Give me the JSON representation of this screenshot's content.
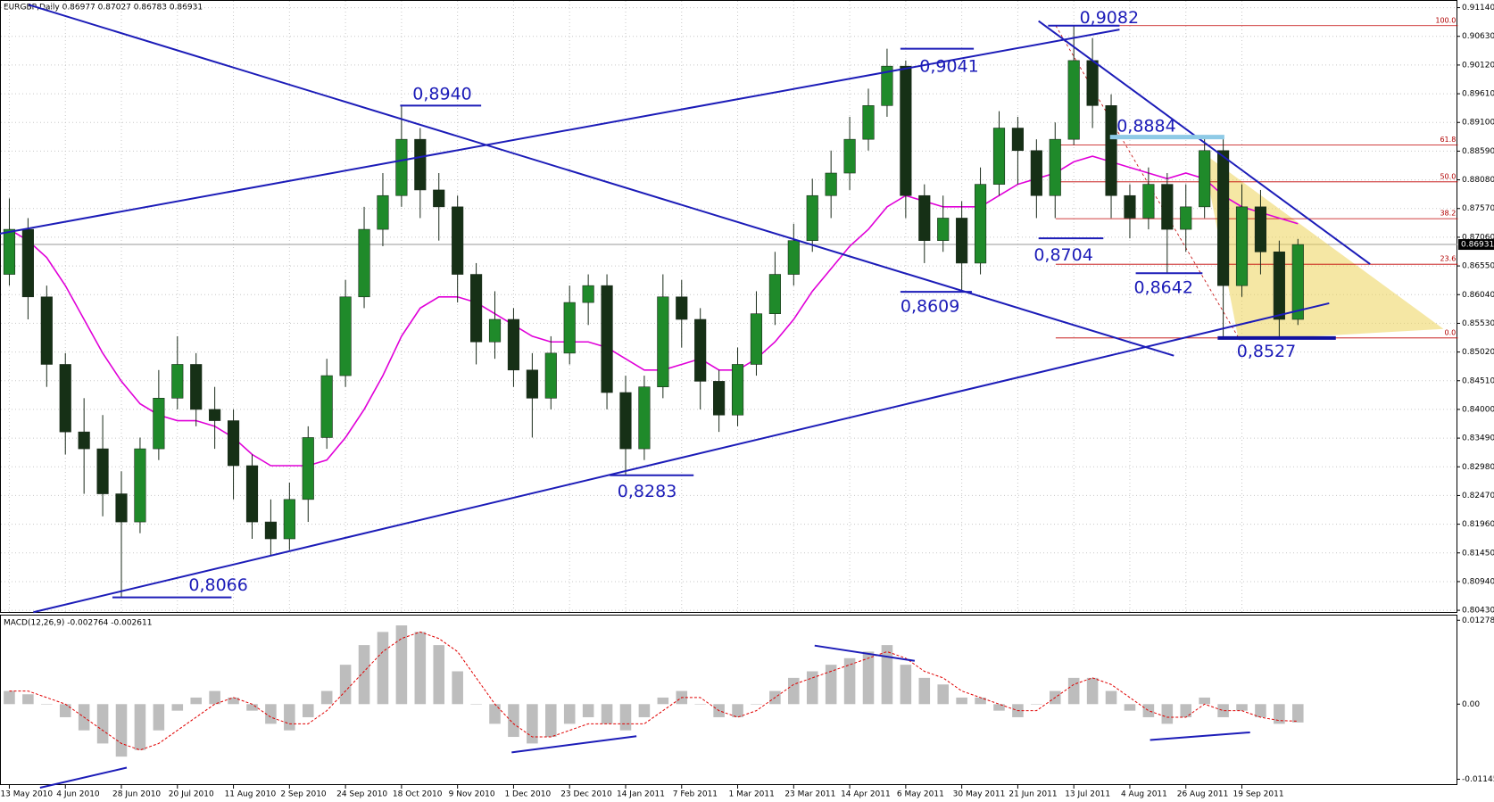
{
  "chart_data": [
    {
      "type": "candlestick",
      "title": "EURGBP,Daily  0.86977 0.87027 0.86783 0.86931",
      "categories": [
        "13 May 2010",
        null,
        null,
        "4 Jun 2010",
        null,
        null,
        "28 Jun 2010",
        null,
        null,
        "20 Jul 2010",
        null,
        null,
        "11 Aug 2010",
        null,
        null,
        "2 Sep 2010",
        null,
        null,
        "24 Sep 2010",
        null,
        null,
        "18 Oct 2010",
        null,
        null,
        "9 Nov 2010",
        null,
        null,
        "1 Dec 2010",
        null,
        null,
        "23 Dec 2010",
        null,
        null,
        "14 Jan 2011",
        null,
        null,
        "7 Feb 2011",
        null,
        null,
        "1 Mar 2011",
        null,
        null,
        "23 Mar 2011",
        null,
        null,
        "14 Apr 2011",
        null,
        null,
        "6 May 2011",
        null,
        null,
        "30 May 2011",
        null,
        null,
        "21 Jun 2011",
        null,
        null,
        "13 Jul 2011",
        null,
        null,
        "4 Aug 2011",
        null,
        null,
        "26 Aug 2011",
        null,
        null,
        "19 Sep 2011",
        null,
        null,
        null
      ],
      "open": [
        0.864,
        0.872,
        0.86,
        0.848,
        0.836,
        0.833,
        0.825,
        0.82,
        0.833,
        0.842,
        0.848,
        0.84,
        0.838,
        0.83,
        0.82,
        0.817,
        0.824,
        0.835,
        0.846,
        0.86,
        0.872,
        0.878,
        0.888,
        0.879,
        0.876,
        0.864,
        0.852,
        0.856,
        0.847,
        0.842,
        0.85,
        0.859,
        0.862,
        0.843,
        0.833,
        0.844,
        0.86,
        0.856,
        0.845,
        0.839,
        0.848,
        0.857,
        0.864,
        0.87,
        0.878,
        0.882,
        0.888,
        0.894,
        0.901,
        0.878,
        0.87,
        0.874,
        0.866,
        0.88,
        0.89,
        0.886,
        0.878,
        0.888,
        0.902,
        0.894,
        0.878,
        0.874,
        0.88,
        0.872,
        0.876,
        0.886,
        0.862,
        0.876,
        0.868,
        0.856
      ],
      "high": [
        0.8775,
        0.874,
        0.862,
        0.85,
        0.842,
        0.839,
        0.829,
        0.835,
        0.847,
        0.853,
        0.85,
        0.844,
        0.84,
        0.832,
        0.824,
        0.827,
        0.837,
        0.849,
        0.863,
        0.876,
        0.882,
        0.894,
        0.89,
        0.882,
        0.878,
        0.866,
        0.861,
        0.858,
        0.85,
        0.853,
        0.862,
        0.864,
        0.864,
        0.846,
        0.846,
        0.864,
        0.863,
        0.858,
        0.847,
        0.851,
        0.861,
        0.868,
        0.873,
        0.881,
        0.886,
        0.892,
        0.897,
        0.9041,
        0.902,
        0.88,
        0.878,
        0.877,
        0.883,
        0.893,
        0.892,
        0.888,
        0.891,
        0.9082,
        0.906,
        0.896,
        0.88,
        0.883,
        0.882,
        0.88,
        0.8884,
        0.888,
        0.88,
        0.879,
        0.87,
        0.8703
      ],
      "low": [
        0.862,
        0.856,
        0.844,
        0.832,
        0.825,
        0.821,
        0.8066,
        0.818,
        0.831,
        0.84,
        0.837,
        0.833,
        0.824,
        0.817,
        0.814,
        0.815,
        0.82,
        0.833,
        0.844,
        0.858,
        0.869,
        0.876,
        0.874,
        0.87,
        0.859,
        0.848,
        0.849,
        0.844,
        0.835,
        0.84,
        0.848,
        0.855,
        0.84,
        0.8283,
        0.831,
        0.842,
        0.851,
        0.84,
        0.836,
        0.837,
        0.846,
        0.855,
        0.862,
        0.868,
        0.874,
        0.879,
        0.886,
        0.892,
        0.874,
        0.866,
        0.868,
        0.8609,
        0.864,
        0.878,
        0.88,
        0.874,
        0.874,
        0.887,
        0.89,
        0.874,
        0.8704,
        0.872,
        0.8642,
        0.868,
        0.874,
        0.8527,
        0.86,
        0.864,
        0.8527,
        0.855
      ],
      "close": [
        0.872,
        0.86,
        0.848,
        0.836,
        0.833,
        0.825,
        0.82,
        0.833,
        0.842,
        0.848,
        0.84,
        0.838,
        0.83,
        0.82,
        0.817,
        0.824,
        0.835,
        0.846,
        0.86,
        0.872,
        0.878,
        0.888,
        0.879,
        0.876,
        0.864,
        0.852,
        0.856,
        0.847,
        0.842,
        0.85,
        0.859,
        0.862,
        0.843,
        0.833,
        0.844,
        0.86,
        0.856,
        0.845,
        0.839,
        0.848,
        0.857,
        0.864,
        0.87,
        0.878,
        0.882,
        0.888,
        0.894,
        0.901,
        0.878,
        0.87,
        0.874,
        0.866,
        0.88,
        0.89,
        0.886,
        0.878,
        0.888,
        0.902,
        0.894,
        0.878,
        0.874,
        0.88,
        0.872,
        0.876,
        0.886,
        0.862,
        0.876,
        0.868,
        0.856,
        0.8693
      ],
      "up_color": "#1f8a2a",
      "down_color": "#163016",
      "moving_average": {
        "color": "#e000d8",
        "values": [
          0.872,
          0.87,
          0.867,
          0.862,
          0.856,
          0.85,
          0.845,
          0.841,
          0.839,
          0.838,
          0.838,
          0.837,
          0.835,
          0.832,
          0.83,
          0.83,
          0.83,
          0.831,
          0.835,
          0.84,
          0.846,
          0.853,
          0.858,
          0.86,
          0.86,
          0.859,
          0.857,
          0.855,
          0.853,
          0.852,
          0.852,
          0.852,
          0.851,
          0.849,
          0.847,
          0.847,
          0.848,
          0.849,
          0.847,
          0.847,
          0.849,
          0.852,
          0.856,
          0.861,
          0.865,
          0.869,
          0.872,
          0.876,
          0.878,
          0.877,
          0.876,
          0.876,
          0.876,
          0.878,
          0.88,
          0.881,
          0.882,
          0.884,
          0.885,
          0.884,
          0.883,
          0.882,
          0.881,
          0.882,
          0.881,
          0.878,
          0.876,
          0.875,
          0.874,
          0.873
        ]
      },
      "ylim": [
        0.804,
        0.9126
      ],
      "yticks": [
        {
          "value": 0.9114,
          "label": "0.91140"
        },
        {
          "value": 0.9063,
          "label": "0.90630"
        },
        {
          "value": 0.9012,
          "label": "0.90120"
        },
        {
          "value": 0.8961,
          "label": "0.89610"
        },
        {
          "value": 0.891,
          "label": "0.89100"
        },
        {
          "value": 0.8859,
          "label": "0.88590"
        },
        {
          "value": 0.8808,
          "label": "0.88080"
        },
        {
          "value": 0.8757,
          "label": "0.87570"
        },
        {
          "value": 0.8706,
          "label": "0.87060"
        },
        {
          "value": 0.8655,
          "label": "0.86550"
        },
        {
          "value": 0.8604,
          "label": "0.86040"
        },
        {
          "value": 0.8553,
          "label": "0.85530"
        },
        {
          "value": 0.8502,
          "label": "0.85020"
        },
        {
          "value": 0.8451,
          "label": "0.84510"
        },
        {
          "value": 0.84,
          "label": "0.84000"
        },
        {
          "value": 0.8349,
          "label": "0.83490"
        },
        {
          "value": 0.8298,
          "label": "0.82980"
        },
        {
          "value": 0.8247,
          "label": "0.82470"
        },
        {
          "value": 0.8196,
          "label": "0.81960"
        },
        {
          "value": 0.8145,
          "label": "0.81450"
        },
        {
          "value": 0.8094,
          "label": "0.80940"
        },
        {
          "value": 0.8043,
          "label": "0.80430"
        }
      ],
      "grid": true,
      "last_price": {
        "value": 0.86931,
        "label": "0.86931"
      },
      "annotations": [
        {
          "value": 0.9082,
          "label": "0,9082"
        },
        {
          "value": 0.9041,
          "label": "0,9041"
        },
        {
          "value": 0.894,
          "label": "0,8940"
        },
        {
          "value": 0.8884,
          "label": "0,8884"
        },
        {
          "value": 0.8704,
          "label": "0,8704"
        },
        {
          "value": 0.8642,
          "label": "0,8642"
        },
        {
          "value": 0.8609,
          "label": "0,8609"
        },
        {
          "value": 0.8527,
          "label": "0,8527"
        },
        {
          "value": 0.8283,
          "label": "0,8283"
        },
        {
          "value": 0.8066,
          "label": "0,8066"
        }
      ],
      "fib": {
        "high": 0.9082,
        "low": 0.8527,
        "color": "#c00000",
        "levels": [
          {
            "value": 100,
            "label": "100.0"
          },
          {
            "value": 61.8,
            "label": "61.8"
          },
          {
            "value": 50,
            "label": "50.0"
          },
          {
            "value": 38.2,
            "label": "38.2"
          },
          {
            "value": 23.6,
            "label": "23.6"
          },
          {
            "value": 0,
            "label": "0.0"
          }
        ]
      }
    },
    {
      "type": "macd",
      "title": "MACD(12,26,9) -0.002764 -0.002611",
      "histogram": {
        "color": "#bdbdbd",
        "values": [
          0.002,
          0.0015,
          0,
          -0.002,
          -0.004,
          -0.006,
          -0.008,
          -0.007,
          -0.004,
          -0.001,
          0.001,
          0.002,
          0.001,
          -0.001,
          -0.003,
          -0.004,
          -0.002,
          0.002,
          0.006,
          0.009,
          0.011,
          0.012,
          0.011,
          0.009,
          0.005,
          0,
          -0.003,
          -0.005,
          -0.006,
          -0.005,
          -0.003,
          -0.002,
          -0.003,
          -0.004,
          -0.002,
          0.001,
          0.002,
          0,
          -0.002,
          -0.002,
          0,
          0.002,
          0.004,
          0.005,
          0.006,
          0.007,
          0.008,
          0.009,
          0.006,
          0.004,
          0.003,
          0.001,
          0.001,
          -0.001,
          -0.002,
          0,
          0.002,
          0.004,
          0.004,
          0.002,
          -0.001,
          -0.002,
          -0.003,
          -0.002,
          0.001,
          -0.002,
          -0.001,
          -0.002,
          -0.003,
          -0.0028
        ]
      },
      "signal": {
        "color": "#e00000",
        "values": [
          0.002,
          0.002,
          0.001,
          0,
          -0.002,
          -0.004,
          -0.006,
          -0.007,
          -0.006,
          -0.004,
          -0.002,
          0,
          0.001,
          0,
          -0.002,
          -0.003,
          -0.003,
          -0.001,
          0.002,
          0.005,
          0.008,
          0.01,
          0.011,
          0.01,
          0.008,
          0.004,
          0,
          -0.003,
          -0.005,
          -0.005,
          -0.004,
          -0.003,
          -0.003,
          -0.003,
          -0.003,
          -0.001,
          0.001,
          0.001,
          -0.001,
          -0.002,
          -0.001,
          0.001,
          0.003,
          0.004,
          0.005,
          0.006,
          0.007,
          0.008,
          0.007,
          0.005,
          0.004,
          0.002,
          0.001,
          0,
          -0.001,
          -0.001,
          0.001,
          0.003,
          0.004,
          0.003,
          0.001,
          -0.001,
          -0.002,
          -0.002,
          0,
          -0.001,
          -0.001,
          -0.002,
          -0.0025,
          -0.0026
        ]
      },
      "ylim": [
        -0.0122,
        0.0135
      ],
      "yticks": [
        {
          "value": 0.012785,
          "label": "0.012785"
        },
        {
          "value": 0,
          "label": "0.00"
        },
        {
          "value": -0.01145,
          "label": "-0.01145"
        }
      ]
    }
  ]
}
